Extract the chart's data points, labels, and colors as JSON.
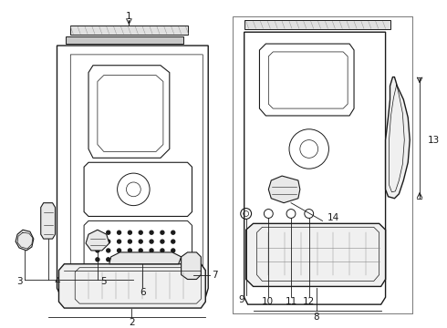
{
  "bg_color": "#ffffff",
  "line_color": "#1a1a1a",
  "fig_width": 4.9,
  "fig_height": 3.6,
  "dpi": 100,
  "label_fontsize": 7.5,
  "lw_main": 0.8,
  "lw_thin": 0.5
}
